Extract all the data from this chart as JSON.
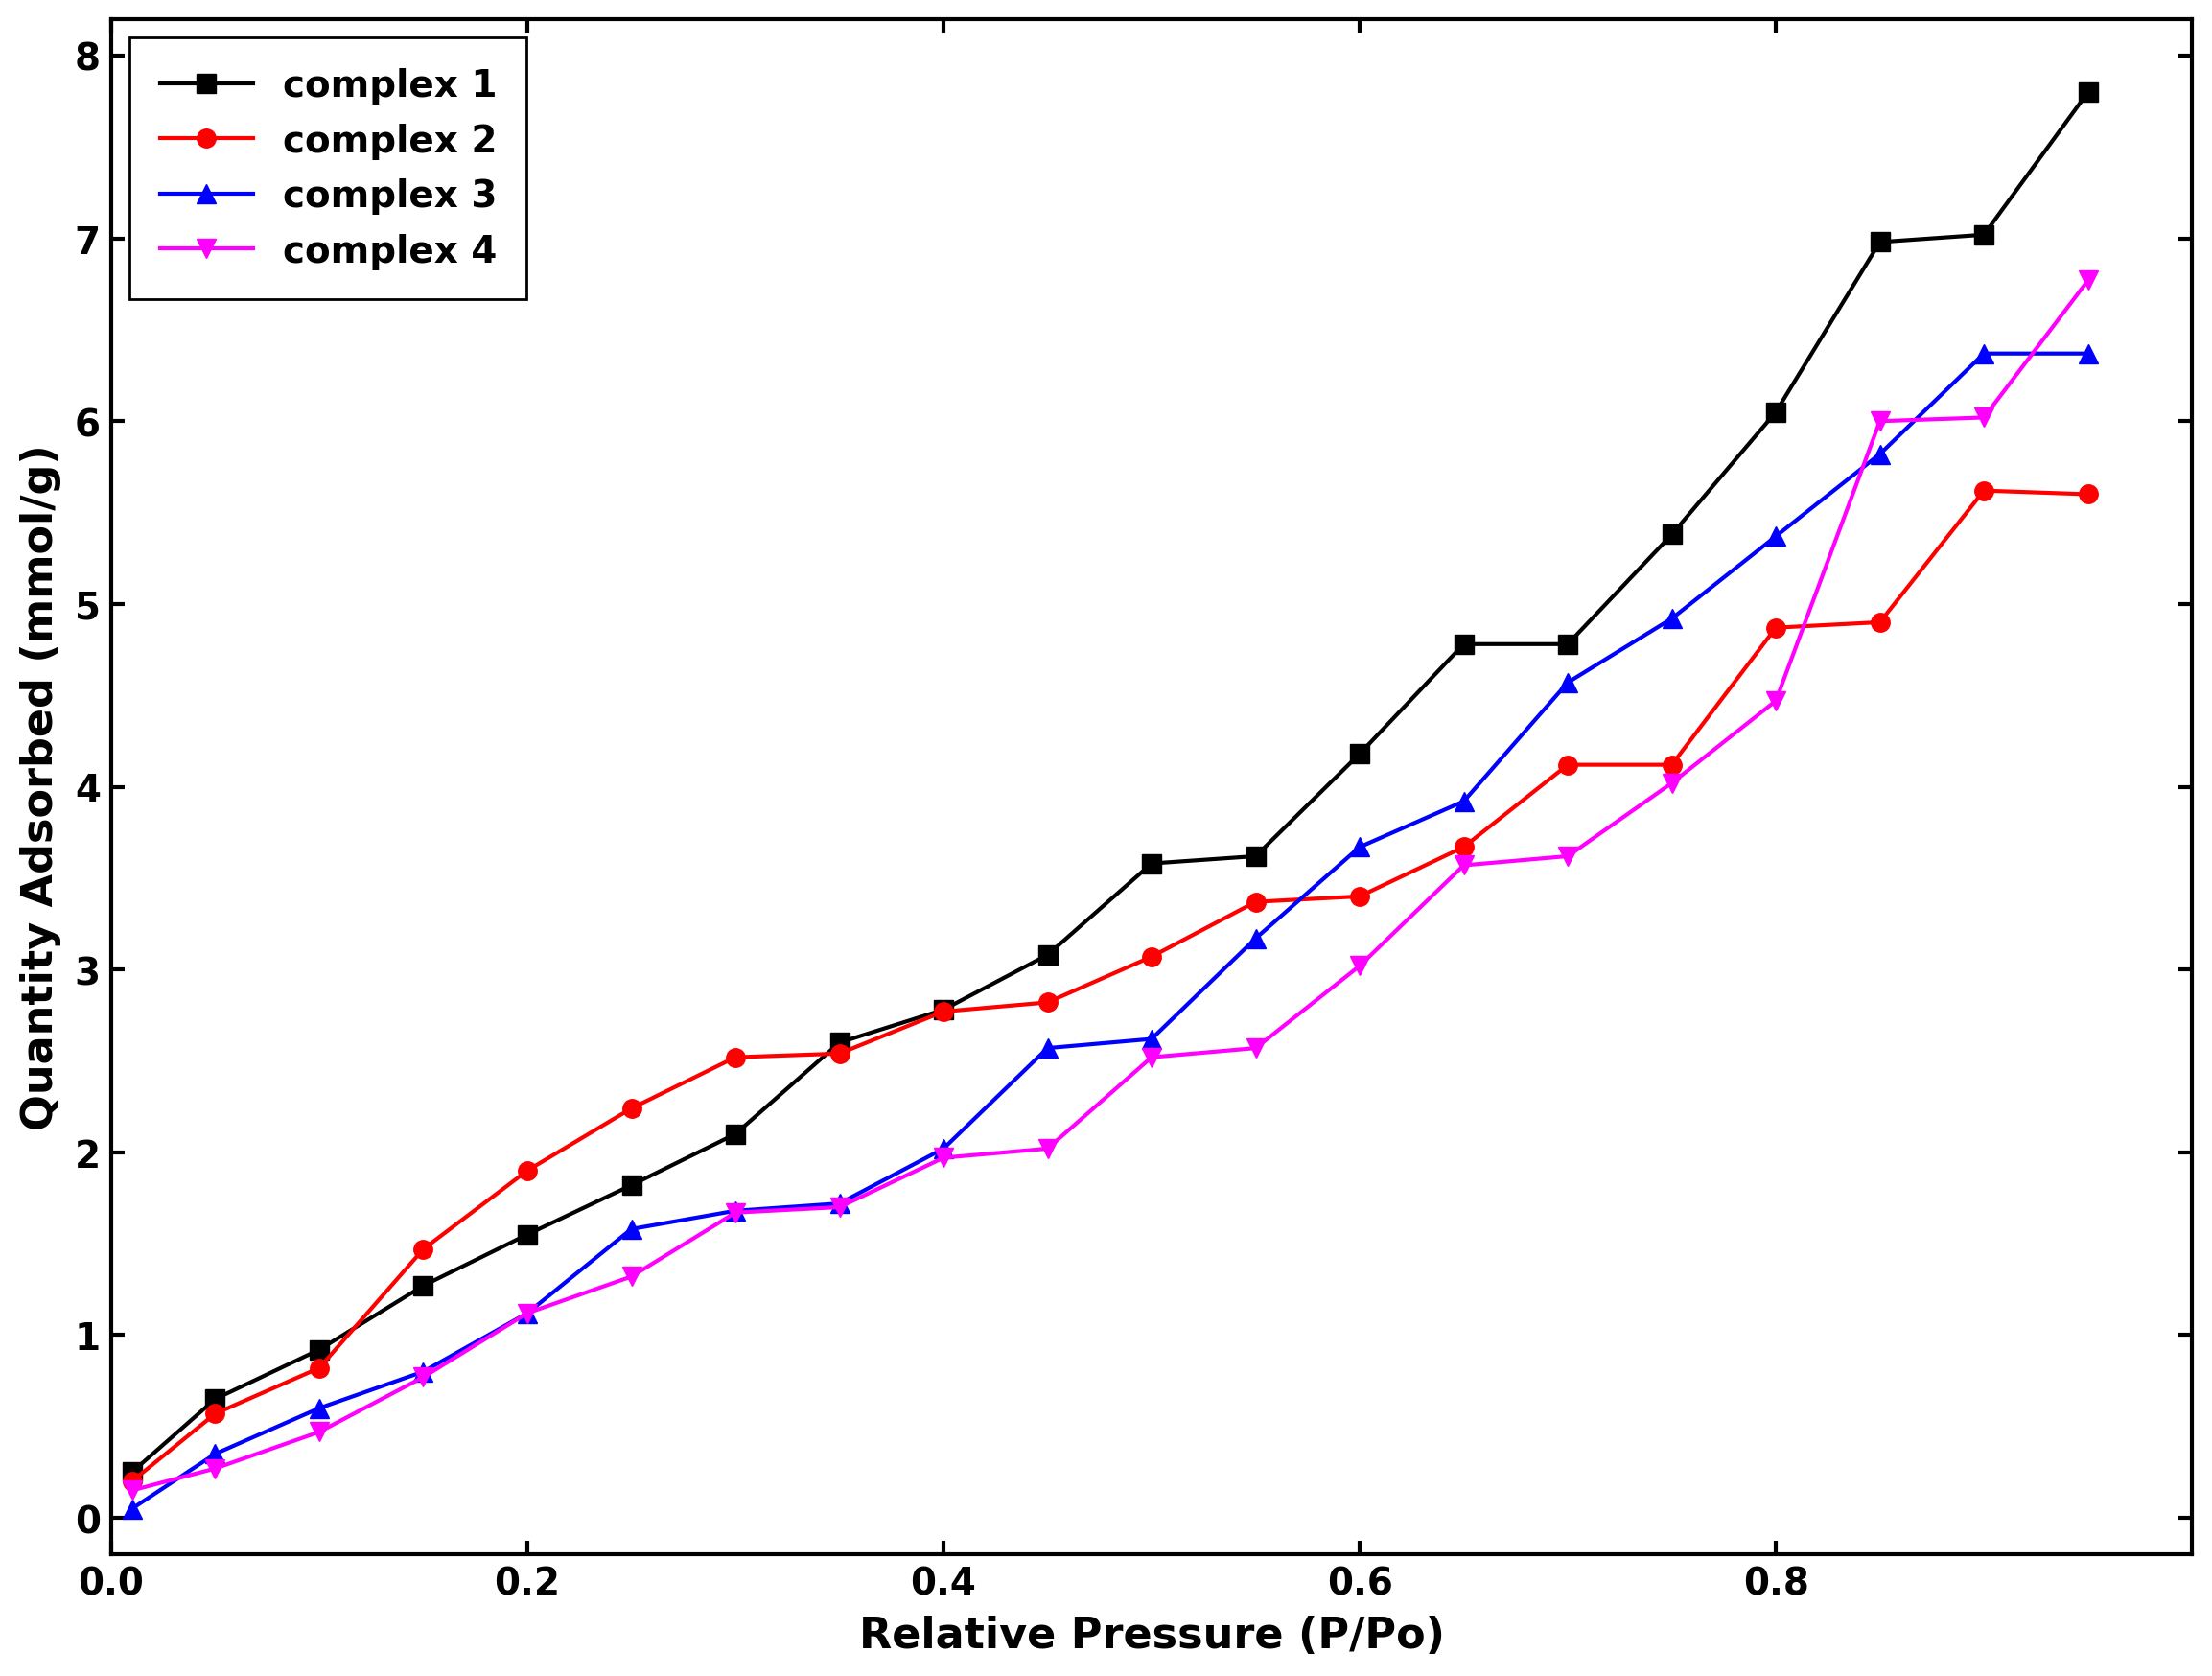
{
  "title": "",
  "xlabel": "Relative Pressure (P/Po)",
  "ylabel": "Quantity Adsorbed (mmol/g)",
  "xlim": [
    0.0,
    1.0
  ],
  "ylim": [
    -0.2,
    8.2
  ],
  "yticks": [
    0,
    1,
    2,
    3,
    4,
    5,
    6,
    7,
    8
  ],
  "xticks": [
    0.0,
    0.2,
    0.4,
    0.6,
    0.8
  ],
  "background_color": "#ffffff",
  "series": [
    {
      "label": "complex 1",
      "color": "#000000",
      "marker": "s",
      "markersize": 14,
      "linewidth": 3.0,
      "x": [
        0.01,
        0.05,
        0.1,
        0.15,
        0.2,
        0.25,
        0.3,
        0.35,
        0.4,
        0.45,
        0.5,
        0.55,
        0.6,
        0.65,
        0.7,
        0.75,
        0.8,
        0.85,
        0.9,
        0.95
      ],
      "y": [
        0.25,
        0.65,
        0.92,
        1.27,
        1.55,
        1.82,
        2.1,
        2.6,
        2.78,
        3.08,
        3.58,
        3.62,
        4.18,
        4.78,
        4.78,
        5.38,
        6.05,
        6.98,
        7.02,
        7.8
      ]
    },
    {
      "label": "complex 2",
      "color": "#ff0000",
      "marker": "o",
      "markersize": 14,
      "linewidth": 3.0,
      "x": [
        0.01,
        0.05,
        0.1,
        0.15,
        0.2,
        0.25,
        0.3,
        0.35,
        0.4,
        0.45,
        0.5,
        0.55,
        0.6,
        0.65,
        0.7,
        0.75,
        0.8,
        0.85,
        0.9,
        0.95
      ],
      "y": [
        0.2,
        0.57,
        0.82,
        1.47,
        1.9,
        2.24,
        2.52,
        2.54,
        2.77,
        2.82,
        3.07,
        3.37,
        3.4,
        3.67,
        4.12,
        4.12,
        4.87,
        4.9,
        5.62,
        5.6
      ]
    },
    {
      "label": "complex 3",
      "color": "#0000ff",
      "marker": "^",
      "markersize": 14,
      "linewidth": 3.0,
      "x": [
        0.01,
        0.05,
        0.1,
        0.15,
        0.2,
        0.25,
        0.3,
        0.35,
        0.4,
        0.45,
        0.5,
        0.55,
        0.6,
        0.65,
        0.7,
        0.75,
        0.8,
        0.85,
        0.9,
        0.95
      ],
      "y": [
        0.05,
        0.35,
        0.6,
        0.8,
        1.12,
        1.58,
        1.68,
        1.72,
        2.02,
        2.57,
        2.62,
        3.17,
        3.67,
        3.92,
        4.57,
        4.92,
        5.37,
        5.82,
        6.37,
        6.37
      ]
    },
    {
      "label": "complex 4",
      "color": "#ff00ff",
      "marker": "v",
      "markersize": 14,
      "linewidth": 3.0,
      "x": [
        0.01,
        0.05,
        0.1,
        0.15,
        0.2,
        0.25,
        0.3,
        0.35,
        0.4,
        0.45,
        0.5,
        0.55,
        0.6,
        0.65,
        0.7,
        0.75,
        0.8,
        0.85,
        0.9,
        0.95
      ],
      "y": [
        0.15,
        0.27,
        0.47,
        0.77,
        1.12,
        1.32,
        1.67,
        1.7,
        1.97,
        2.02,
        2.52,
        2.57,
        3.02,
        3.57,
        3.62,
        4.02,
        4.47,
        6.0,
        6.02,
        6.77
      ]
    }
  ],
  "legend_fontsize": 28,
  "axis_label_fontsize": 32,
  "tick_fontsize": 28,
  "legend_loc": "upper left",
  "linewidth_axes": 3.0
}
